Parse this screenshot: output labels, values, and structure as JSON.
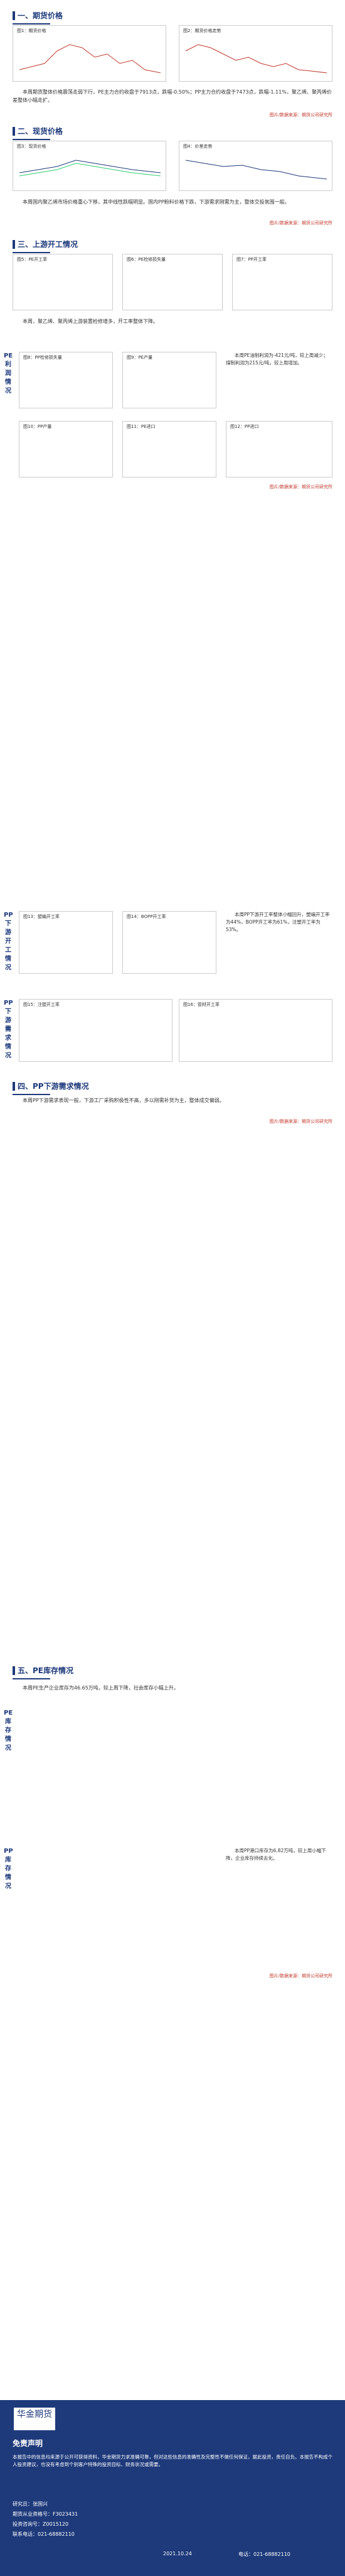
{
  "sections": {
    "s1": {
      "title": "一、期货价格"
    },
    "s2": {
      "title": "二、现货价格"
    },
    "s3": {
      "title": "三、上游开工情况"
    },
    "s4": {
      "title": "四、PP下游需求情况"
    },
    "s5": {
      "title": "五、PE库存情况"
    }
  },
  "s1": {
    "chart_titles": [
      "图1：期货价格",
      "图2：期货价格走势"
    ],
    "para": "本周期货整体价格震荡走弱下行，PE主力合约收盘于7913点，跌幅-0.50%；PP主力合约收盘于7473点，跌幅-1.11%，聚乙烯、聚丙烯价差整体小幅走扩。",
    "source": "图片/数据来源：期货公司研究所"
  },
  "s2": {
    "chart_titles": [
      "图3：现货价格",
      "图4：价差走势"
    ],
    "para": "本周国内聚乙烯市场价格重心下移，其中线性跌幅明显。国内PP粉料价格下跌，下游需求刚需为主，整体交投氛围一般。",
    "source": "图片/数据来源：期货公司研究所"
  },
  "s3": {
    "charts": [
      "图5：PE开工率",
      "图6：PE检修损失量",
      "图7：PP开工率",
      "图8：PP检修损失量",
      "图9：PE产量",
      "图10：PP产量",
      "图11：PE进口",
      "图12：PP进口"
    ],
    "para": "本周，聚乙烯、聚丙烯上游装置检修增多，开工率整体下降。",
    "vlabel": "PE利润情况",
    "side": "本周PE油制利润为-421元/吨，较上周减少；煤制利润为215元/吨，较上周增加。",
    "source": "图片/数据来源：期货公司研究所"
  },
  "s4": {
    "vlabel1": "PP下游开工情况",
    "side1": "本周PP下游开工率整体小幅回升，塑编开工率为44%，BOPP开工率为61%，注塑开工率为53%。",
    "vlabel2": "PP下游需求情况",
    "para": "本周PP下游需求表现一般，下游工厂采购积极性不高，多以刚需补货为主，整体成交偏弱。",
    "charts": [
      "图13：塑编开工率",
      "图14：BOPP开工率",
      "图15：注塑开工率",
      "图16：管材开工率"
    ],
    "source": "图片/数据来源：期货公司研究所"
  },
  "s5": {
    "para": "本周PE生产企业库存为46.65万吨，较上周下降，社会库存小幅上升。",
    "vlabel1": "PE库存情况",
    "vlabel2": "PP库存情况",
    "side": "本周PP港口库存为6.82万吨，较上周小幅下降，企业库存持续去化。",
    "source": "图片/数据来源：期货公司研究所"
  },
  "footer": {
    "logo": "华金期货",
    "subtitle": "免责声明",
    "disclaimer": "本报告中的信息均来源于公开可获得资料，华金期货力求准确可靠，但对这些信息的准确性及完整性不做任何保证，据此投资，责任自负。本报告不构成个人投资建议，也没有考虑到个别客户特殊的投资目标、财务状况或需要。",
    "contacts": [
      "研究员：张国兴",
      "期货从业资格号：F3023431",
      "投资咨询号：Z0015120",
      "联系电话：021-68882110"
    ],
    "date": "2021.10.24",
    "phone": "电话：021-68882110"
  }
}
